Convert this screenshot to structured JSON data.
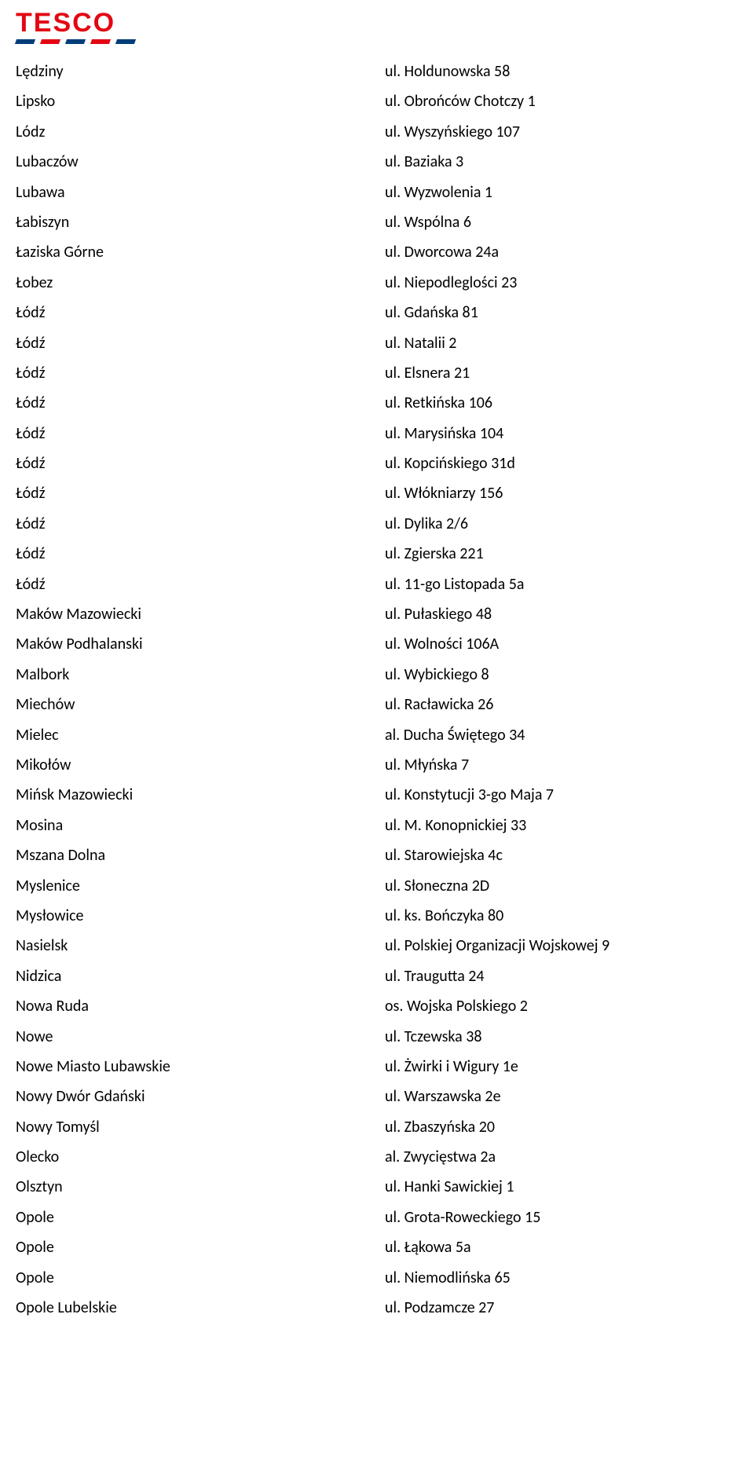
{
  "logo": {
    "brand_text": "TESCO",
    "brand_color": "#e30613",
    "stripe_blue": "#003d7a",
    "stripe_red": "#e30613"
  },
  "rows": [
    {
      "city": "Lędziny",
      "addr": "ul. Holdunowska 58"
    },
    {
      "city": "Lipsko",
      "addr": "ul. Obrońców Chotczy 1"
    },
    {
      "city": "Lódz",
      "addr": "ul. Wyszyńskiego 107"
    },
    {
      "city": "Lubaczów",
      "addr": "ul. Baziaka 3"
    },
    {
      "city": "Lubawa",
      "addr": "ul. Wyzwolenia 1"
    },
    {
      "city": "Łabiszyn",
      "addr": "ul. Wspólna 6"
    },
    {
      "city": "Łaziska Górne",
      "addr": "ul. Dworcowa 24a"
    },
    {
      "city": "Łobez",
      "addr": "ul. Niepodleglości 23"
    },
    {
      "city": "Łódź",
      "addr": "ul. Gdańska 81"
    },
    {
      "city": "Łódź",
      "addr": "ul. Natalii 2"
    },
    {
      "city": "Łódź",
      "addr": "ul. Elsnera 21"
    },
    {
      "city": "Łódź",
      "addr": "ul. Retkińska 106"
    },
    {
      "city": "Łódź",
      "addr": "ul. Marysińska 104"
    },
    {
      "city": "Łódź",
      "addr": "ul. Kopcińskiego 31d"
    },
    {
      "city": "Łódź",
      "addr": "ul. Włókniarzy 156"
    },
    {
      "city": "Łódź",
      "addr": "ul. Dylika 2/6"
    },
    {
      "city": "Łódź",
      "addr": "ul. Zgierska 221"
    },
    {
      "city": "Łódź",
      "addr": "ul. 11-go Listopada 5a"
    },
    {
      "city": "Maków Mazowiecki",
      "addr": "ul. Pułaskiego 48"
    },
    {
      "city": "Maków Podhalanski",
      "addr": "ul. Wolności 106A"
    },
    {
      "city": "Malbork",
      "addr": "ul. Wybickiego 8"
    },
    {
      "city": "Miechów",
      "addr": "ul. Racławicka 26"
    },
    {
      "city": "Mielec",
      "addr": "al. Ducha Świętego 34"
    },
    {
      "city": "Mikołów",
      "addr": "ul. Młyńska 7"
    },
    {
      "city": "Mińsk Mazowiecki",
      "addr": "ul. Konstytucji 3-go Maja 7"
    },
    {
      "city": "Mosina",
      "addr": "ul. M. Konopnickiej 33"
    },
    {
      "city": "Mszana Dolna",
      "addr": "ul. Starowiejska 4c"
    },
    {
      "city": "Myslenice",
      "addr": "ul. Słoneczna 2D"
    },
    {
      "city": "Mysłowice",
      "addr": "ul. ks. Bończyka 80"
    },
    {
      "city": "Nasielsk",
      "addr": "ul. Polskiej Organizacji Wojskowej 9"
    },
    {
      "city": "Nidzica",
      "addr": "ul. Traugutta 24"
    },
    {
      "city": "Nowa Ruda",
      "addr": "os. Wojska Polskiego 2"
    },
    {
      "city": "Nowe",
      "addr": "ul. Tczewska 38"
    },
    {
      "city": "Nowe Miasto Lubawskie",
      "addr": "ul. Żwirki i Wigury 1e"
    },
    {
      "city": "Nowy Dwór Gdański",
      "addr": "ul. Warszawska 2e"
    },
    {
      "city": "Nowy Tomyśl",
      "addr": "ul. Zbaszyńska 20"
    },
    {
      "city": "Olecko",
      "addr": "al. Zwycięstwa 2a"
    },
    {
      "city": "Olsztyn",
      "addr": "ul. Hanki Sawickiej 1"
    },
    {
      "city": "Opole",
      "addr": "ul. Grota-Roweckiego 15"
    },
    {
      "city": "Opole",
      "addr": "ul. Łąkowa 5a"
    },
    {
      "city": "Opole",
      "addr": "ul. Niemodlińska 65"
    },
    {
      "city": "Opole Lubelskie",
      "addr": "ul. Podzamcze 27"
    }
  ]
}
